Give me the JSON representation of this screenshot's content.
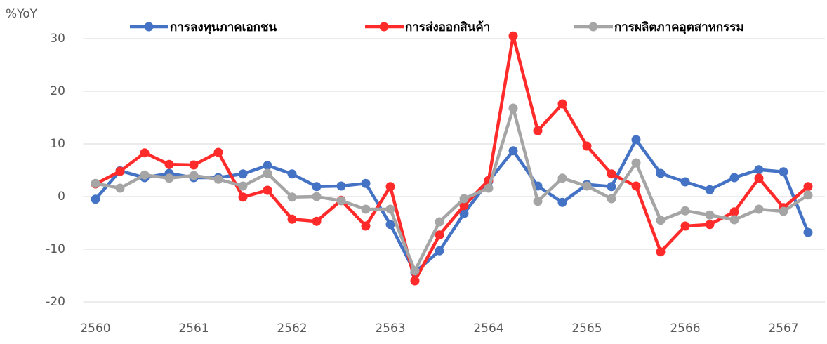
{
  "chart_data": {
    "type": "line",
    "y_label": "%YoY",
    "categories": [
      "2560",
      null,
      null,
      null,
      "2561",
      null,
      null,
      null,
      "2562",
      null,
      null,
      null,
      "2563",
      null,
      null,
      null,
      "2564",
      null,
      null,
      null,
      "2565",
      null,
      null,
      null,
      "2566",
      null,
      null,
      null,
      "2567",
      null
    ],
    "series": [
      {
        "name": "การลงทุนภาคเอกชน",
        "color": "#4472c4",
        "values": [
          -0.5,
          4.9,
          3.6,
          4.4,
          3.6,
          3.6,
          4.3,
          5.9,
          4.3,
          1.9,
          2.0,
          2.5,
          -5.3,
          -14.4,
          -10.3,
          -3.2,
          2.9,
          8.7,
          2.0,
          -1.1,
          2.3,
          1.9,
          10.8,
          4.4,
          2.8,
          1.3,
          3.6,
          5.1,
          4.7,
          -6.8
        ]
      },
      {
        "name": "การส่งออกสินค้า",
        "color": "#ff2a2a",
        "values": [
          2.4,
          4.8,
          8.3,
          6.1,
          6.0,
          8.4,
          -0.1,
          1.2,
          -4.3,
          -4.7,
          -0.7,
          -5.6,
          1.9,
          -16.0,
          -7.3,
          -1.7,
          3.1,
          30.5,
          12.5,
          17.6,
          9.6,
          4.3,
          2.0,
          -10.5,
          -5.6,
          -5.3,
          -2.9,
          3.5,
          -2.1,
          1.9
        ]
      },
      {
        "name": "การผลิตภาคอุตสาหกรรม",
        "color": "#a5a5a5",
        "values": [
          2.5,
          1.6,
          4.1,
          3.5,
          4.0,
          3.3,
          2.0,
          4.4,
          -0.1,
          0.0,
          -0.8,
          -2.4,
          -2.4,
          -14.1,
          -4.8,
          -0.4,
          1.6,
          16.8,
          -0.9,
          3.5,
          2.0,
          -0.4,
          6.4,
          -4.5,
          -2.7,
          -3.5,
          -4.4,
          -2.4,
          -2.8,
          0.3
        ]
      }
    ],
    "ylim": [
      -20,
      30
    ],
    "yticks": [
      -20,
      -10,
      0,
      10,
      20,
      30
    ],
    "grid": true
  }
}
